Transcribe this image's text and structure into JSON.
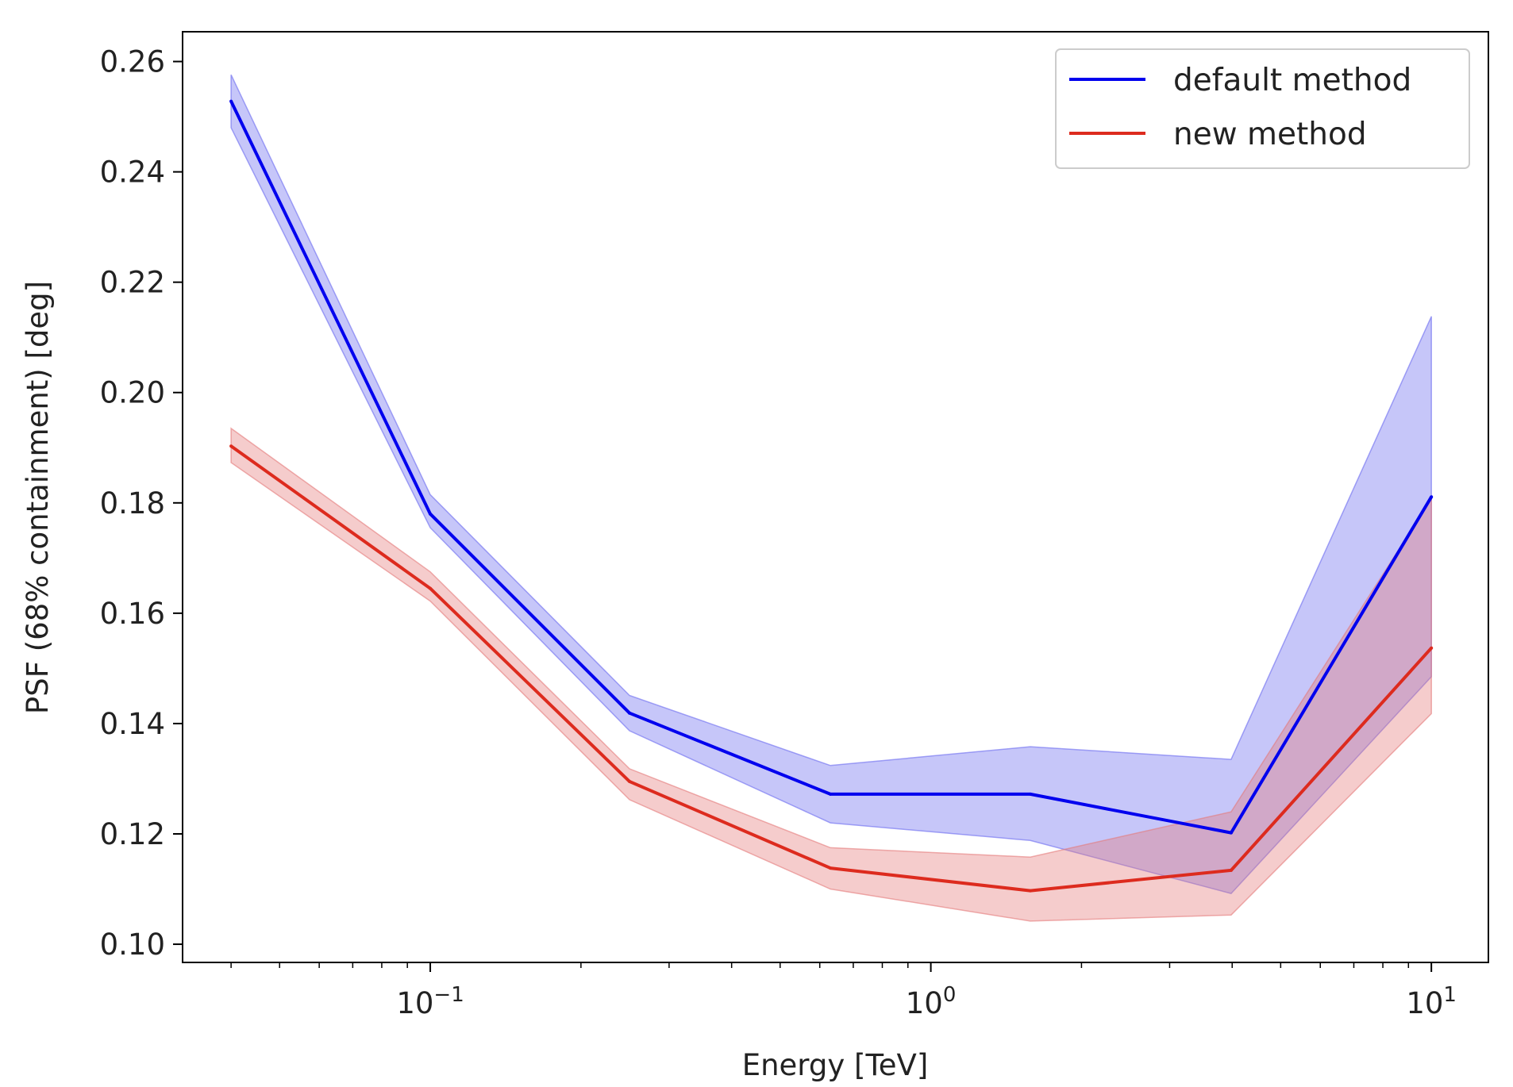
{
  "chart_data": {
    "type": "line",
    "xlabel": "Energy [TeV]",
    "ylabel": "PSF (68% containment) [deg]",
    "xscale": "log",
    "xlim": [
      0.032,
      13.0
    ],
    "ylim": [
      0.0967,
      0.2654
    ],
    "yticks": [
      "0.10",
      "0.12",
      "0.14",
      "0.16",
      "0.18",
      "0.20",
      "0.22",
      "0.24",
      "0.26"
    ],
    "ytick_values": [
      0.1,
      0.12,
      0.14,
      0.16,
      0.18,
      0.2,
      0.22,
      0.24,
      0.26
    ],
    "xticks": [
      {
        "value": 0.1,
        "base": "10",
        "exp": "−1"
      },
      {
        "value": 1,
        "base": "10",
        "exp": "0"
      },
      {
        "value": 10,
        "base": "10",
        "exp": "1"
      }
    ],
    "grid": false,
    "legend_position": "top-right",
    "x": [
      0.04,
      0.1,
      0.25,
      0.63,
      1.58,
      3.98,
      10.0
    ],
    "series": [
      {
        "name": "default method",
        "color": "#0000ee",
        "band_color": "#6a6af0",
        "values": [
          0.2528,
          0.178,
          0.1419,
          0.1272,
          0.1272,
          0.1202,
          0.1811
        ],
        "lower": [
          0.248,
          0.1755,
          0.1387,
          0.122,
          0.1188,
          0.1092,
          0.1485
        ],
        "upper": [
          0.2576,
          0.1815,
          0.1451,
          0.1324,
          0.1358,
          0.1335,
          0.2138
        ]
      },
      {
        "name": "new method",
        "color": "#dd2b1e",
        "band_color": "#e57a7a",
        "values": [
          0.1903,
          0.1645,
          0.1295,
          0.1138,
          0.1097,
          0.1134,
          0.1537
        ],
        "lower": [
          0.1873,
          0.1622,
          0.1262,
          0.11,
          0.1042,
          0.1053,
          0.1418
        ],
        "upper": [
          0.1935,
          0.1675,
          0.1318,
          0.1175,
          0.1158,
          0.124,
          0.1808
        ]
      }
    ]
  }
}
